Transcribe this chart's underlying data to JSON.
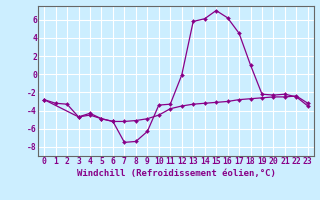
{
  "x": [
    0,
    1,
    2,
    3,
    4,
    5,
    6,
    7,
    8,
    9,
    10,
    11,
    12,
    13,
    14,
    15,
    16,
    17,
    18,
    19,
    20,
    21,
    22,
    23
  ],
  "y_line1": [
    -2.8,
    -3.2,
    -3.3,
    -4.7,
    -4.5,
    -4.9,
    -5.2,
    -5.2,
    -5.1,
    -4.9,
    -4.5,
    -3.8,
    -3.5,
    -3.3,
    -3.2,
    -3.1,
    -3.0,
    -2.8,
    -2.7,
    -2.6,
    -2.5,
    -2.5,
    -2.4,
    -3.2
  ],
  "y_line2": [
    -2.8,
    null,
    null,
    -4.7,
    -4.3,
    -4.9,
    -5.2,
    -7.5,
    -7.4,
    -6.3,
    -3.4,
    -3.3,
    -0.1,
    5.8,
    6.1,
    7.0,
    6.2,
    4.5,
    1.0,
    -2.2,
    -2.3,
    -2.2,
    -2.5,
    -3.5
  ],
  "ylim": [
    -9,
    7.5
  ],
  "xlim": [
    -0.5,
    23.5
  ],
  "yticks": [
    -8,
    -6,
    -4,
    -2,
    0,
    2,
    4,
    6
  ],
  "xticks": [
    0,
    1,
    2,
    3,
    4,
    5,
    6,
    7,
    8,
    9,
    10,
    11,
    12,
    13,
    14,
    15,
    16,
    17,
    18,
    19,
    20,
    21,
    22,
    23
  ],
  "line_color": "#880088",
  "bg_color": "#cceeff",
  "grid_color": "#ffffff",
  "xlabel": "Windchill (Refroidissement éolien,°C)",
  "xlabel_fontsize": 6.5,
  "tick_fontsize": 5.8,
  "marker": "D",
  "markersize": 2.0,
  "spine_color": "#666666"
}
